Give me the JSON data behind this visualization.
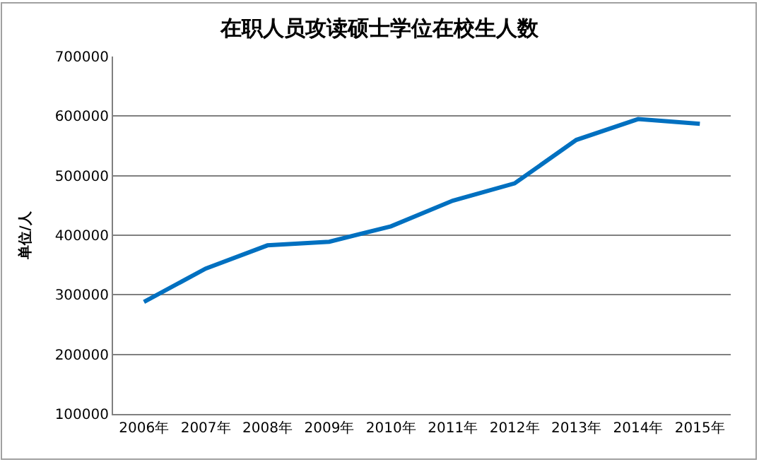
{
  "chart_data": {
    "type": "line",
    "title": "在职人员攻读硕士学位在校生人数",
    "ylabel": "单位/人",
    "categories": [
      "2006年",
      "2007年",
      "2008年",
      "2009年",
      "2010年",
      "2011年",
      "2012年",
      "2013年",
      "2014年",
      "2015年"
    ],
    "series": [
      {
        "color": "#0070c0",
        "values": [
          288000,
          344000,
          383000,
          389000,
          415000,
          458000,
          487000,
          560000,
          595000,
          587000
        ]
      }
    ],
    "ylim": [
      100000,
      700000
    ],
    "yticks": [
      100000,
      200000,
      300000,
      400000,
      500000,
      600000,
      700000
    ],
    "grid": "y",
    "marker": "none",
    "line_style": "solid"
  }
}
